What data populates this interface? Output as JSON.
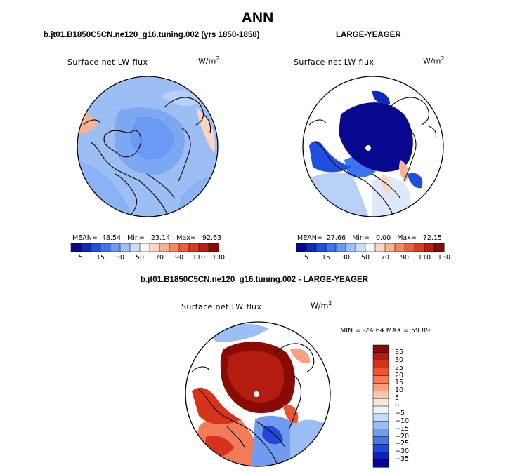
{
  "main_title": "ANN",
  "chart_data": [
    {
      "type": "heatmap",
      "projection": "north-polar-stereographic",
      "title": "b.jt01.B1850C5CN.ne120_g16.tuning.002 (yrs 1850-1858)",
      "variable": "Surface net LW flux",
      "units": "W/m",
      "units_exp": "2",
      "stats": {
        "mean_label": "MEAN=",
        "mean": "48.54",
        "min_label": "Min=",
        "min": "23.14",
        "max_label": "Max=",
        "max": "92.63"
      },
      "colorbar": {
        "orientation": "horizontal",
        "labels": [
          "5",
          "15",
          "30",
          "50",
          "70",
          "90",
          "110",
          "130"
        ]
      }
    },
    {
      "type": "heatmap",
      "projection": "north-polar-stereographic",
      "title": "LARGE-YEAGER",
      "variable": "Surface net LW flux",
      "units": "W/m",
      "units_exp": "2",
      "stats": {
        "mean_label": "MEAN=",
        "mean": "27.66",
        "min_label": "Min=",
        "min": "0.00",
        "max_label": "Max=",
        "max": "72.15"
      },
      "colorbar": {
        "orientation": "horizontal",
        "labels": [
          "5",
          "15",
          "30",
          "50",
          "70",
          "90",
          "110",
          "130"
        ]
      }
    },
    {
      "type": "heatmap",
      "projection": "north-polar-stereographic",
      "title": "b.jt01.B1850C5CN.ne120_g16.tuning.002 - LARGE-YEAGER",
      "variable": "Surface net LW flux",
      "units": "W/m",
      "units_exp": "2",
      "stats_line": "MIN = -24.64  MAX =  59.89",
      "colorbar": {
        "orientation": "vertical",
        "labels": [
          "35",
          "30",
          "25",
          "20",
          "15",
          "10",
          "5",
          "0",
          "−5",
          "−10",
          "−15",
          "−20",
          "−25",
          "−30",
          "−35"
        ]
      }
    }
  ],
  "palettes": {
    "abs": [
      "#08088f",
      "#0d2ac0",
      "#1f4fe0",
      "#3d75f0",
      "#6b9af5",
      "#9cbff8",
      "#c9dcf9",
      "#f7f7f7",
      "#fbd6c2",
      "#f8b193",
      "#f48862",
      "#ee5d37",
      "#db3a1e",
      "#b82012",
      "#870b05"
    ],
    "diff": [
      "#8a0a04",
      "#b31c0f",
      "#d6331c",
      "#ea5532",
      "#f47b57",
      "#f8a07e",
      "#fbc6ab",
      "#fae6d9",
      "#edf2fb",
      "#c8daf8",
      "#9dbef5",
      "#6f9cf2",
      "#4276ea",
      "#2148d8",
      "#0c23b3",
      "#06078a"
    ]
  }
}
